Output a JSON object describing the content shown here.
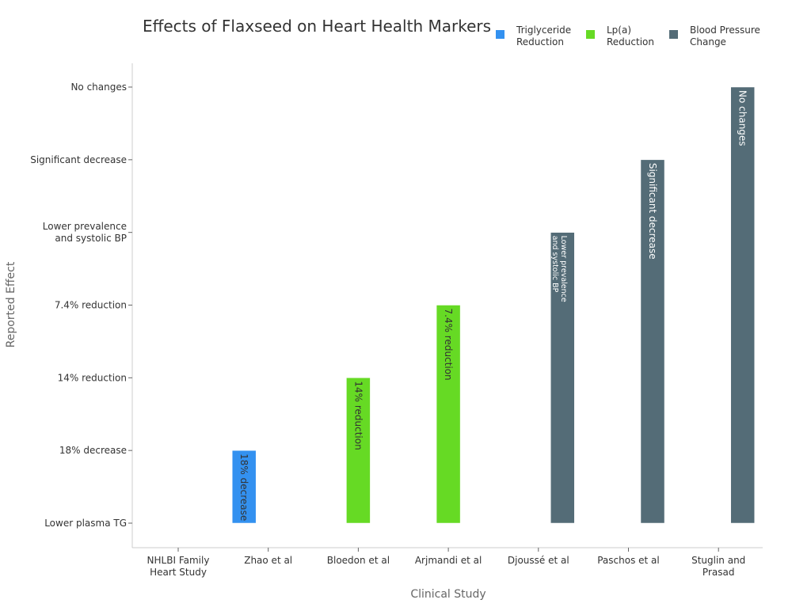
{
  "chart_data": {
    "type": "bar",
    "title": "Effects of Flaxseed on Heart Health Markers",
    "xlabel": "Clinical Study",
    "ylabel": "Reported Effect",
    "categories": [
      "NHLBI Family\nHeart Study",
      "Zhao et al",
      "Bloedon et al",
      "Arjmandi et al",
      "Djoussé et al",
      "Paschos et al",
      "Stuglin and\nPrasad"
    ],
    "y_levels": [
      "Lower plasma TG",
      "18% decrease",
      "14% reduction",
      "7.4% reduction",
      "Lower prevalence\nand systolic BP",
      "Significant decrease",
      "No changes"
    ],
    "series": [
      {
        "name": "Triglyceride\nReduction",
        "color": "#3391f0",
        "text_color": "#333333",
        "offset": -1,
        "points": [
          {
            "category": 0,
            "level": 0,
            "label": ""
          },
          {
            "category": 1,
            "level": 1,
            "label": "18% decrease"
          }
        ]
      },
      {
        "name": "Lp(a)\nReduction",
        "color": "#66da24",
        "text_color": "#333333",
        "offset": 0,
        "points": [
          {
            "category": 2,
            "level": 2,
            "label": "14% reduction"
          },
          {
            "category": 3,
            "level": 3,
            "label": "7.4% reduction"
          }
        ]
      },
      {
        "name": "Blood Pressure\nChange",
        "color": "#546c77",
        "text_color": "#ffffff",
        "offset": 1,
        "points": [
          {
            "category": 4,
            "level": 4,
            "label": "Lower prevalence\nand systolic BP"
          },
          {
            "category": 5,
            "level": 5,
            "label": "Significant decrease"
          },
          {
            "category": 6,
            "level": 6,
            "label": "No changes"
          }
        ]
      }
    ],
    "legend_position": "top-right",
    "grid": false
  }
}
